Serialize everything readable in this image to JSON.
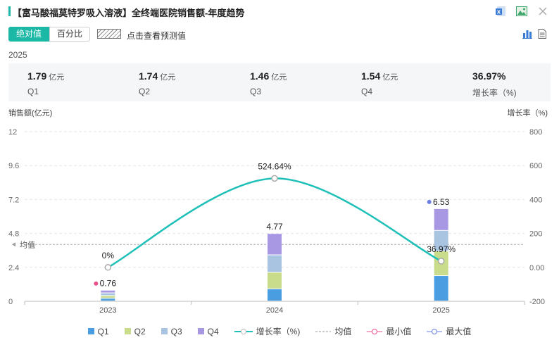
{
  "header": {
    "title": "【富马酸福莫特罗吸入溶液】全终端医院销售额-年度趋势"
  },
  "tabs": [
    {
      "label": "绝对值",
      "active": true
    },
    {
      "label": "百分比",
      "active": false
    }
  ],
  "forecast_label": "点击查看预测值",
  "summary": {
    "year": "2025",
    "items": [
      {
        "value": "1.79",
        "unit": "亿元",
        "label": "Q1"
      },
      {
        "value": "1.74",
        "unit": "亿元",
        "label": "Q2"
      },
      {
        "value": "1.46",
        "unit": "亿元",
        "label": "Q3"
      },
      {
        "value": "1.54",
        "unit": "亿元",
        "label": "Q4"
      },
      {
        "value": "36.97%",
        "unit": "",
        "label": "增长率（%)"
      }
    ]
  },
  "colors": {
    "accent": "#1bb8a6",
    "Q1": "#4a9de0",
    "Q2": "#c8dc8c",
    "Q3": "#a8c4e0",
    "Q4": "#a898e4",
    "growth": "#1fc0b8",
    "min": "#e8508c",
    "max": "#6a7ee0"
  },
  "chart_data": {
    "type": "bar",
    "stacked": true,
    "categories": [
      "2023",
      "2024",
      "2025"
    ],
    "ylabel": "销售额(亿元)",
    "y2label": "增长率（%)",
    "ylim": [
      0,
      12
    ],
    "yticks": [
      "0",
      "2.4",
      "4.8",
      "7.2",
      "9.6",
      "12"
    ],
    "y2lim": [
      -200,
      800
    ],
    "y2ticks": [
      "-200",
      "0.00",
      "200",
      "400",
      "600",
      "800"
    ],
    "series": [
      {
        "name": "Q1",
        "values": [
          0.19,
          0.86,
          1.79
        ]
      },
      {
        "name": "Q2",
        "values": [
          0.19,
          1.17,
          1.74
        ]
      },
      {
        "name": "Q3",
        "values": [
          0.19,
          1.23,
          1.46
        ]
      },
      {
        "name": "Q4",
        "values": [
          0.19,
          1.51,
          1.54
        ]
      }
    ],
    "totals": [
      "0.76",
      "4.77",
      "6.53"
    ],
    "growth": {
      "name": "增长率（%)",
      "values": [
        0,
        524.64,
        36.97
      ],
      "labels": [
        "0%",
        "524.64%",
        "36.97%"
      ]
    },
    "average": {
      "name": "均值",
      "label": "均值",
      "value": 4.02
    },
    "min": {
      "name": "最小值",
      "category": "2023",
      "value": 0.76
    },
    "max": {
      "name": "最大值",
      "category": "2025",
      "value": 6.53
    },
    "legend_position": "bottom",
    "grid": true
  }
}
